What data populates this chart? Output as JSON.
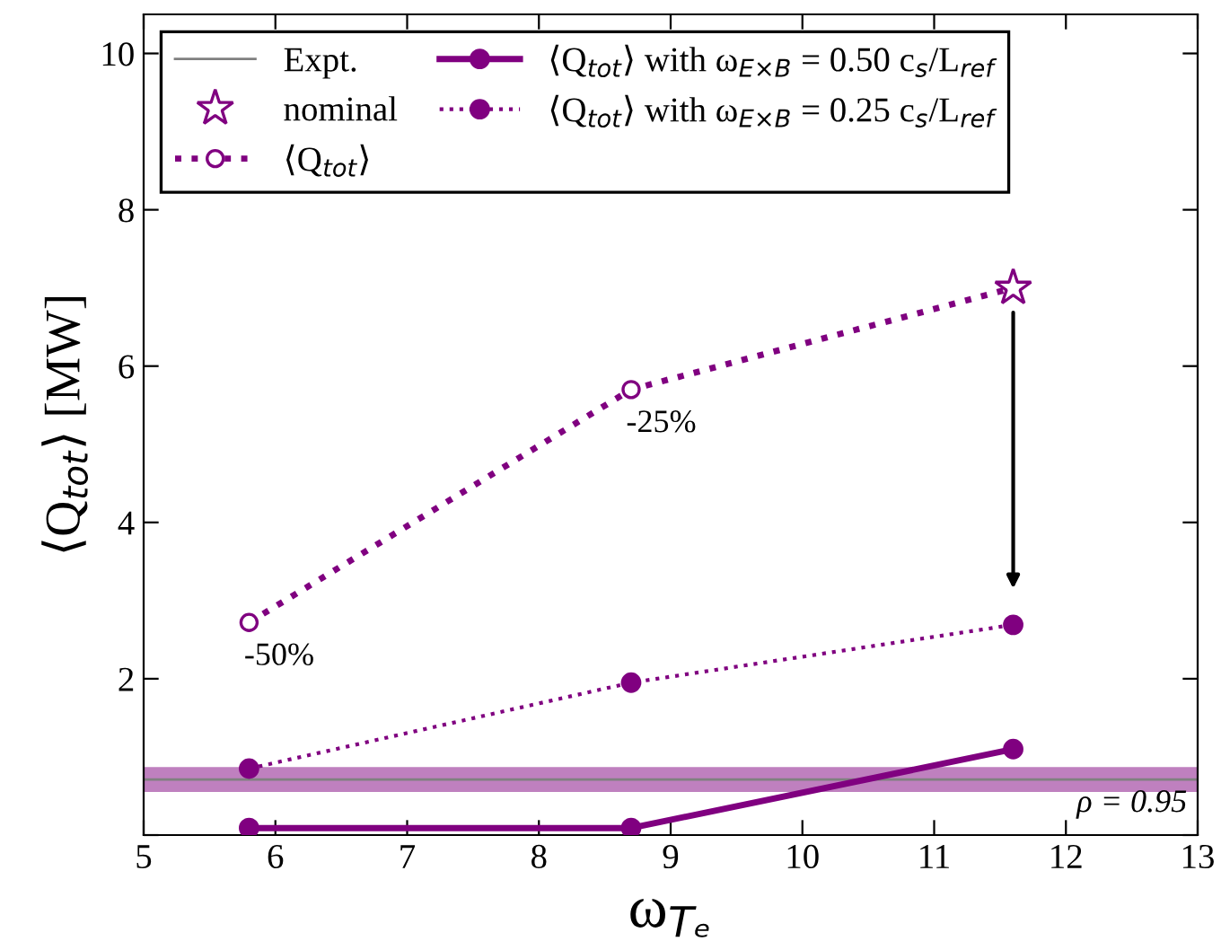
{
  "chart_data": {
    "type": "line",
    "xlabel": "ω$_{Tₑ}$",
    "ylabel": "⟨Q$_{tot}$⟩ [MW]",
    "xlim": [
      5,
      13
    ],
    "xticks": [
      5,
      6,
      7,
      8,
      9,
      10,
      11,
      12,
      13
    ],
    "ylim": [
      0,
      10.5
    ],
    "yticks": [
      {
        "value": 0,
        "label": null
      },
      2,
      4,
      6,
      8,
      10
    ],
    "grid": false,
    "legend": "top left",
    "ref_lines": [
      {
        "axis": "y",
        "value": 0.71,
        "label": "Expt.",
        "color": "#808080",
        "line_style": "solid"
      }
    ],
    "bands": [
      {
        "axis": "y",
        "from": 0.55,
        "to": 0.87,
        "color": "#bf80bf"
      }
    ],
    "series": [
      {
        "name": "nominal",
        "type": "scatter",
        "marker": "star",
        "color": "#800080",
        "x": [
          11.6
        ],
        "values": [
          7.0
        ]
      },
      {
        "name": "⟨Q$_{tot}$⟩",
        "marker": "circle",
        "line_style": "dotted",
        "color": "#800080",
        "x": [
          5.8,
          8.7,
          11.6
        ],
        "values": [
          2.72,
          5.7,
          7.0
        ]
      },
      {
        "name": "⟨Q$_{tot}$⟩ with ω$_{E×B}$ = 0.50 c$_{s}$/L$_{ref}$",
        "marker": "circle",
        "line_style": "solid",
        "color": "#800080",
        "x": [
          5.8,
          8.7,
          11.6
        ],
        "values": [
          0.09,
          0.09,
          1.1
        ]
      },
      {
        "name": "⟨Q$_{tot}$⟩ with ω$_{E×B}$ = 0.25 c$_{s}$/L$_{ref}$",
        "marker": "circle",
        "line_style": "dotted",
        "color": "#800080",
        "x": [
          5.8,
          8.7,
          11.6
        ],
        "values": [
          0.85,
          1.95,
          2.69
        ]
      }
    ],
    "annotations": [
      {
        "text": "-50%",
        "x": 5.8,
        "y": 2.72
      },
      {
        "text": "-25%",
        "x": 8.7,
        "y": 5.7
      },
      "ρ = 0.95"
    ]
  }
}
